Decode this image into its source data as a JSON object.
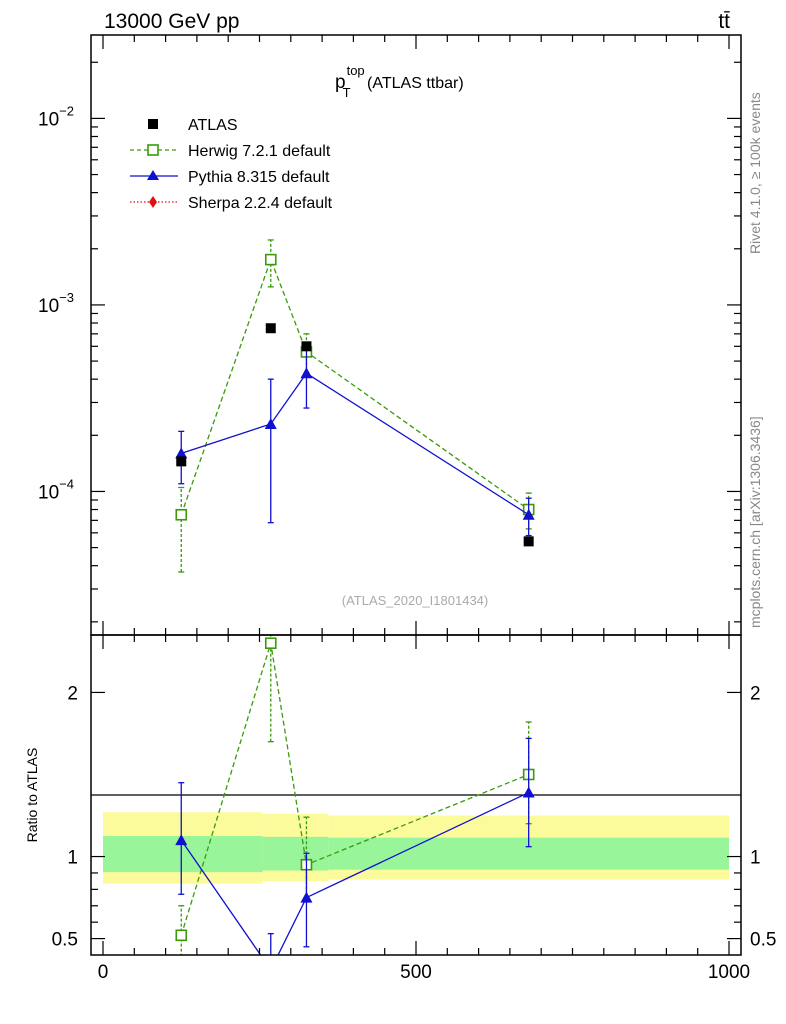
{
  "header": {
    "left": "13000 GeV pp",
    "right": "tt̄"
  },
  "title": {
    "base": "p",
    "sup": "top",
    "sub": "T",
    "rest": " (ATLAS ttbar)"
  },
  "side_labels": {
    "rivet": "Rivet 4.1.0, ≥ 100k events",
    "mcplots": "mcplots.cern.ch [arXiv:1306.3436]"
  },
  "analysis_id": "(ATLAS_2020_I1801434)",
  "colors": {
    "atlas": "#000000",
    "herwig": "#3a9a0a",
    "pythia": "#1010d0",
    "sherpa": "#e01010",
    "band_inner": "#99f599",
    "band_outer": "#fbfb9b"
  },
  "chart_data": {
    "type": "scatter",
    "x_range": [
      0,
      1000
    ],
    "upper": {
      "yscale": "log",
      "ylim": [
        1.7e-05,
        0.028
      ],
      "tick_labels": [
        {
          "value": 0.0001,
          "mantissa": "10",
          "exp": "−4"
        },
        {
          "value": 0.001,
          "mantissa": "10",
          "exp": "−3"
        },
        {
          "value": 0.01,
          "mantissa": "10",
          "exp": "−2"
        }
      ]
    },
    "lower": {
      "ylim": [
        0.4,
        2.35
      ],
      "ylabel": "Ratio to ATLAS",
      "tick_labels": [
        {
          "value": 0.5,
          "label": "0.5"
        },
        {
          "value": 1,
          "label": "1"
        },
        {
          "value": 2,
          "label": "2"
        }
      ]
    },
    "x_tick_labels": [
      {
        "value": 0,
        "label": "0"
      },
      {
        "value": 500,
        "label": "500"
      },
      {
        "value": 1000,
        "label": "1000"
      }
    ],
    "legend": [
      "ATLAS",
      "Herwig 7.2.1 default",
      "Pythia 8.315 default",
      "Sherpa 2.2.4 default"
    ],
    "atlas": {
      "name": "ATLAS",
      "x": [
        125,
        268,
        325,
        680
      ],
      "y": [
        0.000145,
        0.00075,
        0.0006,
        5.4e-05
      ]
    },
    "bands": [
      {
        "x0": 0,
        "x1": 255,
        "inner": [
          0.905,
          1.125
        ],
        "outer": [
          0.835,
          1.27
        ]
      },
      {
        "x0": 255,
        "x1": 360,
        "inner": [
          0.915,
          1.12
        ],
        "outer": [
          0.85,
          1.26
        ]
      },
      {
        "x0": 360,
        "x1": 1000,
        "inner": [
          0.92,
          1.115
        ],
        "outer": [
          0.86,
          1.25
        ]
      }
    ],
    "series": [
      {
        "name": "Herwig 7.2.1 default",
        "x": [
          125,
          268,
          325,
          680
        ],
        "y": [
          7.5e-05,
          0.00175,
          0.00056,
          8e-05
        ],
        "err_lo": [
          3.7e-05,
          0.00125,
          0.00042,
          6.3e-05
        ],
        "err_hi": [
          0.000105,
          0.00223,
          0.0007,
          9.8e-05
        ],
        "ratio": [
          0.52,
          2.3,
          0.95,
          1.5
        ],
        "ratio_lo": [
          0.36,
          1.7,
          0.74,
          1.2
        ],
        "ratio_hi": [
          0.7,
          2.4,
          1.24,
          1.82
        ]
      },
      {
        "name": "Pythia 8.315 default",
        "x": [
          125,
          268,
          325,
          680
        ],
        "y": [
          0.00016,
          0.00023,
          0.00043,
          7.5e-05
        ],
        "err_lo": [
          0.00011,
          6.8e-05,
          0.00028,
          5.8e-05
        ],
        "err_hi": [
          0.00021,
          0.0004,
          0.00058,
          9.2e-05
        ],
        "ratio": [
          1.1,
          0.31,
          0.75,
          1.39
        ],
        "ratio_lo": [
          0.77,
          0.09,
          0.45,
          1.06
        ],
        "ratio_hi": [
          1.45,
          0.53,
          1.02,
          1.72
        ]
      },
      {
        "name": "Sherpa 2.2.4 default",
        "x": [],
        "y": []
      }
    ]
  }
}
